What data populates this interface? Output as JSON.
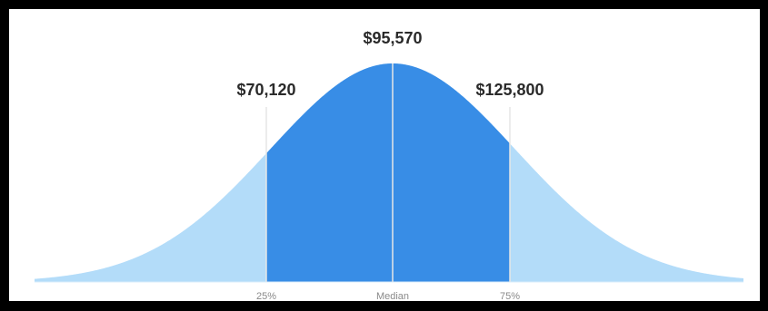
{
  "chart_data": {
    "type": "area",
    "distribution": "normal",
    "values": [
      {
        "tick_label": "25%",
        "value_label": "$70,120",
        "value": 70120
      },
      {
        "tick_label": "Median",
        "value_label": "$95,570",
        "value": 95570
      },
      {
        "tick_label": "75%",
        "value_label": "$125,800",
        "value": 125800
      }
    ],
    "x_range": [
      -1,
      266250
    ],
    "title": "",
    "xlabel": "",
    "ylabel": "",
    "grid": false,
    "colors": {
      "inner": "#388de6",
      "outer": "#b3dcf9",
      "divider": "#e6e6e6",
      "background": "#ffffff",
      "frame": "#000000"
    }
  }
}
